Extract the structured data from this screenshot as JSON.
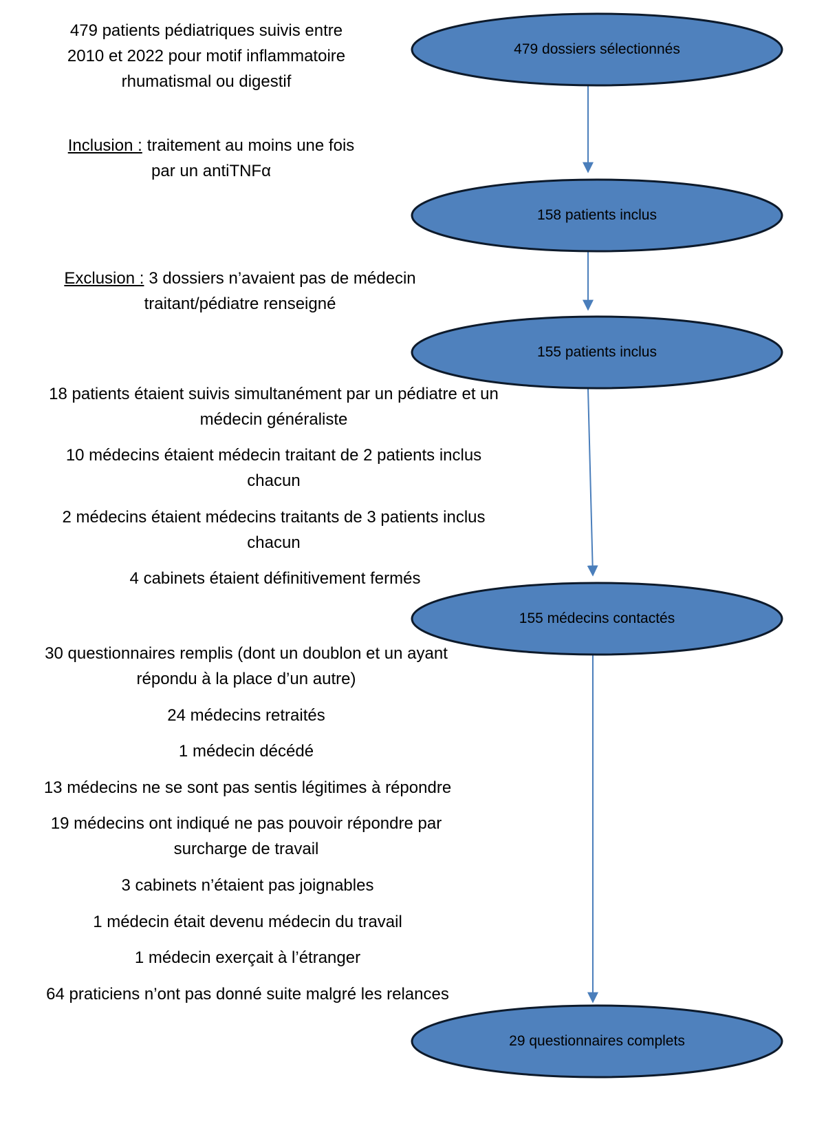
{
  "nodes": [
    {
      "label": "479 dossiers sélectionnés"
    },
    {
      "label": "158 patients inclus"
    },
    {
      "label": "155 patients inclus"
    },
    {
      "label": "155 médecins contactés"
    },
    {
      "label": "29 questionnaires complets"
    }
  ],
  "notes": [
    {
      "lines": [
        "479 patients pédiatriques suivis entre",
        "2010 et 2022 pour motif inflammatoire",
        "rhumatismal ou digestif"
      ]
    },
    {
      "heading": "Inclusion :",
      "lines": [
        "traitement au moins une fois",
        "par un antiTNFα"
      ]
    },
    {
      "heading": "Exclusion :",
      "lines": [
        "3 dossiers n’avaient pas de médecin",
        "traitant/pédiatre renseigné"
      ]
    },
    {
      "lines": [
        "18 patients étaient suivis simultanément par un pédiatre et un",
        "médecin généraliste"
      ]
    },
    {
      "lines": [
        "10 médecins étaient médecin traitant de 2 patients inclus",
        "chacun"
      ]
    },
    {
      "lines": [
        "2 médecins étaient médecins traitants de 3 patients inclus",
        "chacun"
      ]
    },
    {
      "lines": [
        "4 cabinets étaient définitivement fermés"
      ]
    },
    {
      "lines": [
        "30 questionnaires remplis (dont un doublon et un ayant",
        "répondu à la place d’un autre)"
      ]
    },
    {
      "lines": [
        "24 médecins retraités"
      ]
    },
    {
      "lines": [
        "1 médecin décédé"
      ]
    },
    {
      "lines": [
        "13 médecins ne se sont pas sentis légitimes à répondre"
      ]
    },
    {
      "lines": [
        "19 médecins ont indiqué ne pas pouvoir répondre par",
        "surcharge de travail"
      ]
    },
    {
      "lines": [
        "3 cabinets n’étaient pas joignables"
      ]
    },
    {
      "lines": [
        "1 médecin était devenu médecin du travail"
      ]
    },
    {
      "lines": [
        "1 médecin exerçait à l’étranger"
      ]
    },
    {
      "lines": [
        "64 praticiens n’ont pas donné suite malgré les relances"
      ]
    }
  ]
}
